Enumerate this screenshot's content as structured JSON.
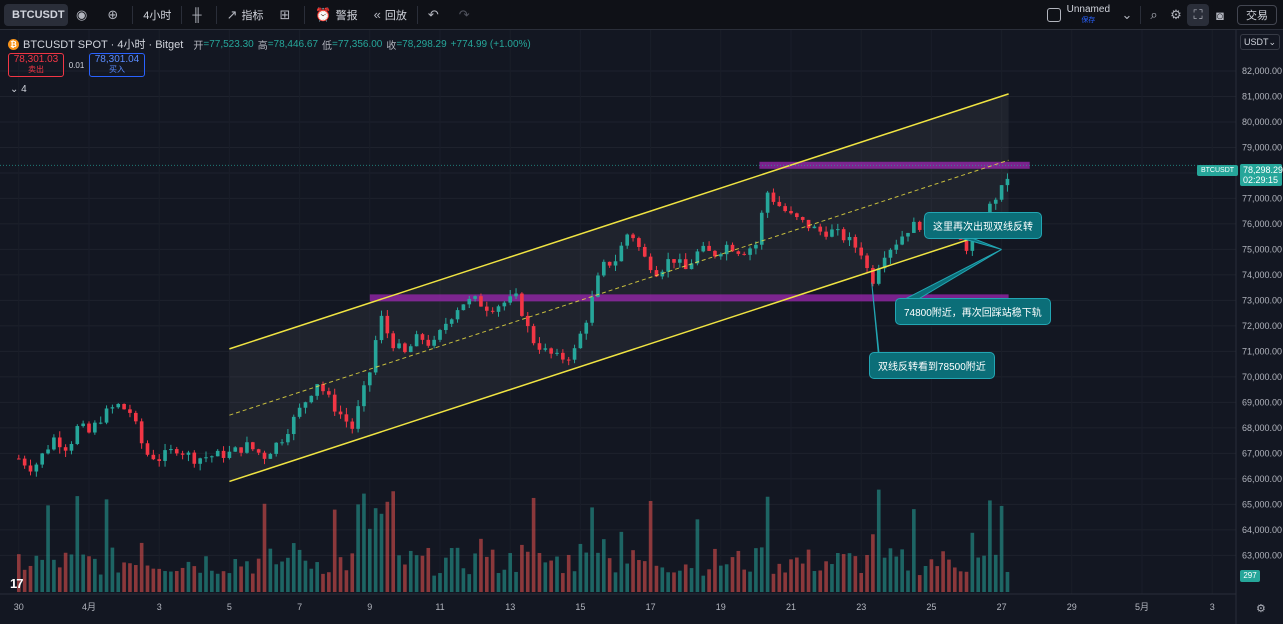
{
  "toolbar": {
    "symbol": "BTCUSDT",
    "interval": "4小时",
    "indicators_label": "指标",
    "alert_label": "警报",
    "replay_label": "回放",
    "layout_name": "Unnamed",
    "layout_sub": "保存",
    "trade_label": "交易",
    "icons": [
      "watch-icon",
      "plus-icon",
      "candles-icon",
      "indicators-icon",
      "templates-icon",
      "alert-icon",
      "replay-icon",
      "undo-icon",
      "redo-icon",
      "search-icon",
      "settings-icon",
      "fullscreen-icon",
      "camera-icon"
    ]
  },
  "legend": {
    "title": "BTCUSDT SPOT · 4小时 · Bitget",
    "open_label": "开",
    "open": "=77,523.30",
    "high_label": "高",
    "high": "=78,446.67",
    "low_label": "低",
    "low": "=77,356.00",
    "close_label": "收",
    "close": "=78,298.29",
    "change": "+774.99 (+1.00%)"
  },
  "bidask": {
    "sell_price": "78,301.03",
    "sell_label": "卖出",
    "spread": "0.01",
    "buy_price": "78,301.04",
    "buy_label": "买入"
  },
  "indicator_count": "4",
  "currency": "USDT",
  "last_price_tag": {
    "price": "78,298.29",
    "countdown": "02:29:15",
    "symbol": "BTCUSDT"
  },
  "volume_tag": "297",
  "logo_text": "17",
  "colors": {
    "up": "#26a69a",
    "down": "#f23645",
    "channel": "#f0e442",
    "zone": "#9c27b0",
    "callout": "#0b6e78",
    "background": "#131722"
  },
  "annotations": [
    "这里再次出现双线反转",
    "74800附近，再次回踩站稳下轨",
    "双线反转看到78500附近"
  ],
  "chart_data": {
    "type": "candlestick",
    "y_axis": {
      "min": 61800,
      "max": 82900,
      "ticks": [
        63000,
        64000,
        65000,
        66000,
        67000,
        68000,
        69000,
        70000,
        71000,
        72000,
        73000,
        74000,
        75000,
        76000,
        77000,
        78000,
        79000,
        80000,
        81000,
        82000
      ],
      "tick_labels": [
        "63,000.00",
        "64,000.00",
        "65,000.00",
        "66,000.00",
        "67,000.00",
        "68,000.00",
        "69,000.00",
        "70,000.00",
        "71,000.00",
        "72,000.00",
        "73,000.00",
        "74,000.00",
        "75,000.00",
        "76,000.00",
        "77,000.00",
        "78,000.00",
        "79,000.00",
        "80,000.00",
        "81,000.00",
        "82,000.00"
      ]
    },
    "x_axis": {
      "tick_labels": [
        "30",
        "4月",
        "3",
        "5",
        "7",
        "9",
        "11",
        "13",
        "15",
        "17",
        "19",
        "21",
        "23",
        "25",
        "27",
        "29",
        "5月",
        "3"
      ],
      "tick_days": [
        -2,
        0,
        2,
        4,
        6,
        8,
        10,
        12,
        14,
        16,
        18,
        20,
        22,
        24,
        26,
        28,
        30,
        32
      ]
    },
    "day_anchor": {
      "day": 0,
      "label": "4月"
    },
    "bars_per_day": 6,
    "price_path": [
      [
        -2.0,
        66800
      ],
      [
        -1.6,
        66400
      ],
      [
        -1.3,
        67000
      ],
      [
        -1.0,
        67600
      ],
      [
        -0.6,
        67200
      ],
      [
        -0.3,
        68100
      ],
      [
        0.0,
        67800
      ],
      [
        0.4,
        68500
      ],
      [
        0.8,
        68900
      ],
      [
        1.2,
        68600
      ],
      [
        1.6,
        67000
      ],
      [
        2.0,
        66800
      ],
      [
        2.5,
        67200
      ],
      [
        3.0,
        66800
      ],
      [
        3.5,
        66900
      ],
      [
        4.0,
        67000
      ],
      [
        4.5,
        67300
      ],
      [
        5.0,
        66900
      ],
      [
        5.5,
        67600
      ],
      [
        6.0,
        68700
      ],
      [
        6.5,
        69800
      ],
      [
        7.0,
        68800
      ],
      [
        7.5,
        68000
      ],
      [
        8.0,
        70200
      ],
      [
        8.3,
        72400
      ],
      [
        8.6,
        71400
      ],
      [
        9.0,
        70900
      ],
      [
        9.4,
        71600
      ],
      [
        9.8,
        71200
      ],
      [
        10.2,
        72200
      ],
      [
        10.6,
        72900
      ],
      [
        11.0,
        73000
      ],
      [
        11.4,
        72700
      ],
      [
        11.8,
        72900
      ],
      [
        12.2,
        73100
      ],
      [
        12.6,
        71500
      ],
      [
        13.0,
        71000
      ],
      [
        13.4,
        70700
      ],
      [
        13.8,
        70900
      ],
      [
        14.2,
        72400
      ],
      [
        14.6,
        74300
      ],
      [
        15.0,
        74600
      ],
      [
        15.4,
        75800
      ],
      [
        15.8,
        74700
      ],
      [
        16.2,
        74100
      ],
      [
        16.6,
        74700
      ],
      [
        17.0,
        74200
      ],
      [
        17.4,
        75000
      ],
      [
        17.8,
        74800
      ],
      [
        18.2,
        75200
      ],
      [
        18.6,
        74900
      ],
      [
        19.0,
        75200
      ],
      [
        19.3,
        77300
      ],
      [
        19.6,
        76800
      ],
      [
        20.0,
        76300
      ],
      [
        20.4,
        76000
      ],
      [
        20.8,
        75700
      ],
      [
        21.2,
        75700
      ],
      [
        21.6,
        75400
      ],
      [
        22.0,
        74900
      ],
      [
        22.3,
        73700
      ],
      [
        22.6,
        74800
      ],
      [
        23.0,
        75300
      ],
      [
        23.4,
        75900
      ],
      [
        23.8,
        76000
      ],
      [
        24.2,
        76100
      ],
      [
        24.6,
        75600
      ],
      [
        25.0,
        75100
      ],
      [
        25.4,
        76000
      ],
      [
        25.8,
        77000
      ],
      [
        26.1,
        77500
      ],
      [
        26.3,
        78298
      ]
    ],
    "volume_max": 69000,
    "channel": {
      "upper": [
        [
          4.0,
          71100
        ],
        [
          26.2,
          81100
        ]
      ],
      "lower": [
        [
          4.0,
          65900
        ],
        [
          26.2,
          75900
        ]
      ],
      "mid": [
        [
          4.0,
          68500
        ],
        [
          26.2,
          78500
        ]
      ]
    },
    "zones": [
      {
        "from_day": 8.0,
        "to_day": 26.2,
        "price": 73100
      },
      {
        "from_day": 19.1,
        "to_day": 26.8,
        "price": 78300
      }
    ],
    "last_price": 78298.29
  }
}
